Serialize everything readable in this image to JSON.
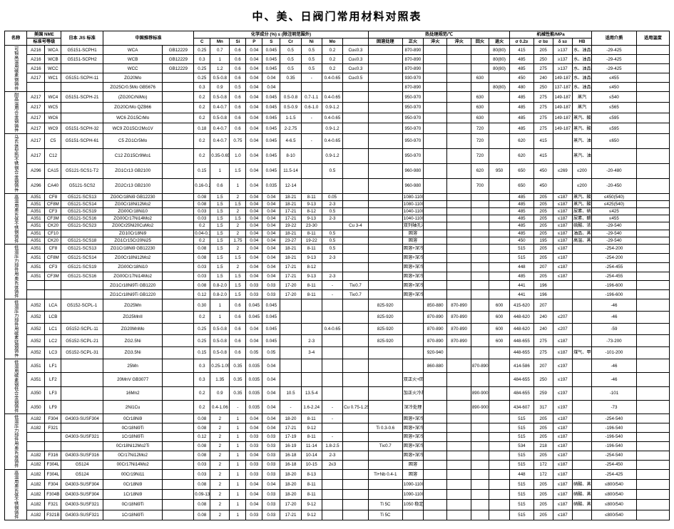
{
  "title": "中、美、日阀门常用材料对照表",
  "header": {
    "row1": {
      "name": "名称",
      "us": "美国 NME",
      "jp": "日本 JIS 标准",
      "cn": "中国推荐标准",
      "chem": "化学成分 (%) ≤ (除注明范围外)",
      "heat": "热处理规范/℃",
      "mech": "机械性能/MPa",
      "use": "适用介质",
      "temp": "适用温度"
    },
    "row2": {
      "us_sub": "标准号等级",
      "chem_cols": [
        "C",
        "Mn",
        "Si",
        "P",
        "S",
        "Cr",
        "Ni",
        "Mo"
      ],
      "heat_cols": [
        "固溶处理",
        "正火",
        "淬火",
        "淬火",
        "回火",
        "退火"
      ],
      "mech_cols": [
        "σ 0.2≥",
        "σ b≥",
        "δ s≥",
        "HB"
      ]
    }
  },
  "groups": [
    {
      "label": "可锻高温用碳素钢铸件",
      "rows": [
        "r0",
        "r1",
        "r2",
        "r3",
        "r4"
      ]
    },
    {
      "label": "耐高温用合金钢铸件",
      "rows": [
        "r5",
        "r6",
        "r7",
        "r8"
      ]
    },
    {
      "label": "马氏体型热不锈钢合金钢铸件",
      "rows": [
        "r9",
        "r10",
        "r11",
        "r12"
      ]
    },
    {
      "label": "高温用奥氏体不锈钢铸件",
      "rows": [
        "r13",
        "r14",
        "r15",
        "r16",
        "r17",
        "r18",
        "r19"
      ]
    },
    {
      "label": "低温压力部件用奥氏体铸件",
      "rows": [
        "r20",
        "r21",
        "r22",
        "r23",
        "r24",
        "r25"
      ]
    },
    {
      "label": "低温压力部件用碳素锰钢铸件",
      "rows": [
        "r26",
        "r27",
        "r28",
        "r29",
        "r30"
      ]
    },
    {
      "label": "低温用碳素钢低合金钢铸件",
      "rows": [
        "r31",
        "r32",
        "r33",
        "r34"
      ]
    },
    {
      "label": "低温压力部件用奥氏体铸件",
      "rows": [
        "r35",
        "r36",
        "r37",
        "r38",
        "r39",
        "r40"
      ]
    },
    {
      "label": "高温用奥氏体不锈钢铸件",
      "rows": [
        "r41",
        "r42",
        "r43",
        "r44"
      ]
    }
  ],
  "rows": {
    "r0": [
      "A216",
      "WCA",
      "G5151-SCPH1",
      "WCA",
      "GB12229",
      "0.25",
      "0.7",
      "0.6",
      "0.04",
      "0.045",
      "0.5",
      "0.5",
      "0.2",
      "Cu≤0.3",
      "",
      "870-890",
      "",
      "",
      "",
      "80(80)",
      "415",
      "205",
      "≥137",
      "水、油品、蒸汽",
      "-29-425"
    ],
    "r1": [
      "A216",
      "WCB",
      "G5151-SCPH2",
      "WCB",
      "GB12229",
      "0.3",
      "1",
      "0.6",
      "0.04",
      "0.045",
      "0.5",
      "0.5",
      "0.2",
      "Cu≤0.3",
      "",
      "870-890",
      "",
      "",
      "",
      "80(80)",
      "485",
      "250",
      "≥137",
      "水、油品、蒸汽",
      "-29-425"
    ],
    "r2": [
      "A216",
      "WCC",
      "",
      "WCC",
      "GB12229",
      "0.25",
      "1.2",
      "0.6",
      "0.04",
      "0.045",
      "0.5",
      "0.5",
      "0.2",
      "Cu≤0.3",
      "",
      "870-890",
      "",
      "",
      "",
      "80(80)",
      "485",
      "275",
      "≥137",
      "水、油品、蒸汽",
      "-29-425"
    ],
    "r3": [
      "A217",
      "WC1",
      "G5151-SCPH-11",
      "ZG20Mo",
      "",
      "0.25",
      "0.5-0.8",
      "0.6",
      "0.04",
      "0.04",
      "0.35",
      "-",
      "0.4-0.65",
      "Cu≤0.5",
      "",
      "930-970",
      "",
      "",
      "630",
      "",
      "450",
      "240",
      "149-187",
      "水、油品、蒸汽",
      "≤455"
    ],
    "r4": [
      "",
      "",
      "",
      "ZG25Cr0.5Mo  GB5676",
      "",
      "0.3",
      "0.9",
      "0.5",
      "0.04",
      "0.04",
      "",
      "",
      "",
      "",
      "",
      "870-890",
      "",
      "",
      "",
      "80(80)",
      "480",
      "250",
      "137-187",
      "水、油品、蒸汽",
      "≤450"
    ],
    "r5": [
      "A217",
      "WC4",
      "G5151-SCPH-21",
      "(ZG20CrNiMo)",
      "",
      "0.2",
      "0.5-0.8",
      "0.6",
      "0.04",
      "0.045",
      "0.5-0.8",
      "0.7-1.1",
      "0.4-0.65",
      "",
      "",
      "950-970",
      "",
      "",
      "630",
      "",
      "485",
      "275",
      "149-187",
      "蒸汽",
      "≤540"
    ],
    "r6": [
      "A217",
      "WC5",
      "",
      "ZG20CrMo  QZB66",
      "",
      "0.2",
      "0.4-0.7",
      "0.6",
      "0.04",
      "0.045",
      "0.5-0.9",
      "0.6-1.0",
      "0.9-1.2",
      "",
      "",
      "950-970",
      "",
      "",
      "630",
      "",
      "485",
      "275",
      "149-187",
      "蒸汽",
      "≤565"
    ],
    "r7": [
      "A217",
      "WC6",
      "",
      "WC6  ZG15CrMo",
      "",
      "0.2",
      "0.5-0.8",
      "0.6",
      "0.04",
      "0.045",
      "1-1.5",
      "-",
      "0.4-0.65",
      "",
      "",
      "950-970",
      "",
      "",
      "630",
      "",
      "485",
      "275",
      "149-187",
      "蒸汽、酸碱类",
      "≤595"
    ],
    "r8": [
      "A217",
      "WC9",
      "G5151-SCPH-32",
      "WC9  ZG15Cr2Mo1V",
      "",
      "0.18",
      "0.4-0.7",
      "0.6",
      "0.04",
      "0.045",
      "2-2.75",
      "",
      "0.9-1.2",
      "",
      "",
      "950-970",
      "",
      "",
      "720",
      "",
      "485",
      "275",
      "149-187",
      "蒸汽、酸碱类",
      "≤595"
    ],
    "r9": [
      "A217",
      "C5",
      "G5151-SCPH-61",
      "C5  ZG1Cr5Mo",
      "",
      "0.2",
      "0.4-0.7",
      "0.75",
      "0.04",
      "0.045",
      "4-6.5",
      "-",
      "0.4-0.65",
      "",
      "",
      "950-970",
      "",
      "",
      "720",
      "",
      "620",
      "415",
      "",
      "蒸汽、油品",
      "≤650"
    ],
    "r10": [
      "A217",
      "C12",
      "",
      "C12  ZG15Cr9Mo1",
      "",
      "0.2",
      "0.35-0.65",
      "1.0",
      "0.04",
      "0.045",
      "8-10",
      "",
      "0.9-1.2",
      "",
      "",
      "950-970",
      "",
      "",
      "720",
      "",
      "620",
      "415",
      "",
      "蒸汽、油品",
      ""
    ],
    "r11": [
      "A296",
      "CA15",
      "G5121-SCS1-T2",
      "ZG1Cr13  GB2100",
      "",
      "0.15",
      "1",
      "1.5",
      "0.04",
      "0.045",
      "11.5-14",
      "",
      "0.5",
      "",
      "",
      "960-980",
      "",
      "",
      "620",
      "950",
      "650",
      "450",
      "≤269",
      "≤200",
      "-20-480"
    ],
    "r12": [
      "A296",
      "CA40",
      "G5121-SCS2",
      "ZG2Cr13  GB2100",
      "",
      "0.16-0.24",
      "0.6",
      "1",
      "0.04",
      "0.035",
      "12-14",
      "",
      "",
      "",
      "",
      "960-980",
      "",
      "",
      "700",
      "",
      "650",
      "450",
      "",
      "≤200",
      "-20-450"
    ],
    "r13": [
      "A351",
      "CF8",
      "G5121-SCS13",
      "ZG0Cr18Ni9  GB12230",
      "",
      "0.08",
      "1.5",
      "2",
      "0.04",
      "0.04",
      "18-21",
      "8-11",
      "0.05",
      "",
      "",
      "1080-1100 固溶",
      "",
      "",
      "",
      "",
      "485",
      "205",
      "≤187",
      "蒸汽、酸碱类",
      "≤450(540)"
    ],
    "r14": [
      "A351",
      "CF8M",
      "G5121-SCS14",
      "ZG0Cr18Ni12Mo2",
      "",
      "0.08",
      "1.5",
      "1.5",
      "0.04",
      "0.04",
      "18-21",
      "9-13",
      "2-3",
      "",
      "",
      "1080-1100 固溶",
      "",
      "",
      "",
      "",
      "485",
      "205",
      "≤187",
      "蒸汽、酸碱、硝酸",
      "≤425(540)"
    ],
    "r15": [
      "A351",
      "CF3",
      "G5121-SCS19",
      "ZG00Cr18Ni10",
      "",
      "0.03",
      "1.5",
      "2",
      "0.04",
      "0.04",
      "17-21",
      "8-12",
      "0.5",
      "",
      "",
      "1040-1100 固溶",
      "",
      "",
      "",
      "",
      "485",
      "205",
      "≤187",
      "尿素、硝酸",
      "≤425"
    ],
    "r16": [
      "A351",
      "CF3M",
      "G5121-SCS16",
      "ZG00Cr17Ni14Mo2",
      "",
      "0.03",
      "1.5",
      "1.5",
      "0.04",
      "0.04",
      "17-21",
      "9-13",
      "2-3",
      "",
      "",
      "1040-1100 固溶",
      "",
      "",
      "",
      "",
      "485",
      "205",
      "≤187",
      "尿素、醋酸类",
      "≤455"
    ],
    "r17": [
      "A351",
      "CK20",
      "G5121-SCS23",
      "ZG0Cr25Ni20CuMo2",
      "",
      "0.2",
      "1.5",
      "2",
      "0.04",
      "0.04",
      "19-22",
      "23-30",
      "",
      "Cu 3-4",
      "",
      "双列轴孔淬火",
      "",
      "",
      "",
      "",
      "485",
      "205",
      "≤187",
      "硫酸、浓硝酸",
      "-29-540"
    ],
    "r18": [
      "A351",
      "CF10",
      "",
      "ZG10Cr18Ni9",
      "",
      "0.04-0.1",
      "1.5",
      "2",
      "0.04",
      "0.04",
      "18-21",
      "8-11",
      "0.5",
      "",
      "",
      "固溶",
      "",
      "",
      "",
      "",
      "485",
      "205",
      "≤187",
      "油品、蒸汽、强腐蚀",
      "-29-540"
    ],
    "r19": [
      "A351",
      "CK20",
      "G5121-SCS18",
      "ZG1Cr15Cr20Ni25",
      "",
      "0.2",
      "1.5",
      "1.75",
      "0.04",
      "0.04",
      "23-27",
      "19-22",
      "0.5",
      "",
      "",
      "固溶",
      "",
      "",
      "",
      "",
      "450",
      "195",
      "≤187",
      "高温、蒸汽、强腐蚀",
      "-29-540"
    ],
    "r20": [
      "A351",
      "CF8",
      "G5121-SCS13",
      "ZG1Cr18Ni9  GB12230",
      "",
      "0.08",
      "1.5",
      "2",
      "0.04",
      "0.04",
      "18-21",
      "8-11",
      "0.5",
      "",
      "",
      "固溶+深冷",
      "",
      "",
      "",
      "",
      "515",
      "205",
      "≤187",
      "",
      "-254-200"
    ],
    "r21": [
      "A351",
      "CF8M",
      "G5121-SCS14",
      "ZG0Cr18Ni12Mo2",
      "",
      "0.08",
      "1.5",
      "1.5",
      "0.04",
      "0.04",
      "18-21",
      "9-13",
      "2-3",
      "",
      "",
      "固溶+深冷",
      "",
      "",
      "",
      "",
      "515",
      "205",
      "≤187",
      "",
      "-254-200"
    ],
    "r22": [
      "A351",
      "CF3",
      "G5121-SCS19",
      "ZG00Cr18Ni10",
      "",
      "0.03",
      "1.5",
      "2",
      "0.04",
      "0.04",
      "17-21",
      "8-12",
      "",
      "",
      "",
      "固溶+深冷",
      "",
      "",
      "",
      "",
      "448",
      "207",
      "≤187",
      "",
      "-254-455"
    ],
    "r23": [
      "A351",
      "CF3M",
      "G5121-SCS16",
      "ZG00Cr17Ni14Mo2",
      "",
      "0.03",
      "1.5",
      "1.5",
      "0.04",
      "0.04",
      "17-21",
      "9-13",
      "2-3",
      "",
      "",
      "固溶+深冷",
      "",
      "",
      "",
      "",
      "485",
      "205",
      "≤187",
      "",
      "-254-455"
    ],
    "r24": [
      "",
      "",
      "",
      "ZG1Cr18Ni9Ti  GB1220",
      "",
      "0.08",
      "0.8-2.0",
      "1.5",
      "0.03",
      "0.03",
      "17-20",
      "8-11",
      "-",
      "Ti≤0.7",
      "",
      "固溶+深冷",
      "",
      "",
      "",
      "",
      "441",
      "196",
      "",
      "",
      "-196-600"
    ],
    "r25": [
      "",
      "",
      "",
      "ZG1Cr18Ni9Ti  GB1220",
      "",
      "0.12",
      "0.8-2.0",
      "1.5",
      "0.03",
      "0.03",
      "17-20",
      "8-11",
      "-",
      "Ti≤0.7",
      "",
      "固溶+深冷",
      "",
      "",
      "",
      "",
      "441",
      "196",
      "",
      "",
      "-196-600"
    ],
    "r26": [
      "A352",
      "LCA",
      "G5152-SCPL-1",
      "ZG25Mn",
      "",
      "0.30",
      "1",
      "0.6",
      "0.045",
      "0.045",
      "",
      "",
      "",
      "",
      "825-920",
      "",
      "850-880",
      "870-890",
      "",
      "600",
      "415-620",
      "207",
      "",
      "",
      "-46"
    ],
    "r27": [
      "A352",
      "LCB",
      "",
      "ZG25MnII",
      "",
      "0.2",
      "1",
      "0.6",
      "0.045",
      "0.045",
      "",
      "",
      "",
      "",
      "825-920",
      "",
      "870-890",
      "870-890",
      "",
      "600",
      "448-620",
      "240",
      "≤207",
      "",
      "-46"
    ],
    "r28": [
      "A352",
      "LC1",
      "G5152-SCPL-11",
      "ZG20MnMo",
      "",
      "0.25",
      "0.5-0.8",
      "0.6",
      "0.04",
      "0.045",
      "",
      "",
      "0.4-0.65",
      "",
      "825-920",
      "",
      "870-890",
      "870-890",
      "",
      "600",
      "448-620",
      "240",
      "≤207",
      "",
      "-59"
    ],
    "r29": [
      "A352",
      "LC2",
      "G5152-SCPL-21",
      "ZG2.5Ni",
      "",
      "0.25",
      "0.5-0.8",
      "0.6",
      "0.04",
      "0.045",
      "",
      "2-3",
      "",
      "",
      "825-920",
      "",
      "870-890",
      "870-890",
      "",
      "600",
      "448-655",
      "275",
      "≤187",
      "",
      "-73-200"
    ],
    "r30": [
      "A352",
      "LC3",
      "G5152-SCPL-31",
      "ZG3.5Ni",
      "",
      "0.15",
      "0.5-0.8",
      "0.6",
      "0.05",
      "0.05",
      "",
      "3-4",
      "",
      "",
      "",
      "",
      "920-940",
      "",
      "",
      "",
      "448-655",
      "275",
      "≤187",
      "煤气、甲烷",
      "-101-200"
    ],
    "r31": [
      "A351",
      "LF1",
      "",
      "25Mn",
      "",
      "0.3",
      "0.25-1.05",
      "0.35",
      "0.035",
      "0.04",
      "",
      "",
      "",
      "",
      "",
      "",
      "860-880",
      "",
      "870-890",
      "",
      "414-586",
      "207",
      "≤197",
      "",
      "-46"
    ],
    "r32": [
      "A351",
      "LF2",
      "",
      "20MnV  GB3077",
      "",
      "0.3",
      "1.35",
      "0.35",
      "0.035",
      "0.04",
      "",
      "",
      "",
      "",
      "",
      "双正火+回火",
      "",
      "",
      "",
      "",
      "484-655",
      "250",
      "≤197",
      "",
      "-46"
    ],
    "r33": [
      "A350",
      "LF3",
      "",
      "16Mn2",
      "",
      "0.2",
      "0.9",
      "0.35",
      "0.035",
      "0.04",
      "10.5",
      "13.5-4",
      "",
      "",
      "",
      "加正火冷却",
      "",
      "",
      "890-900",
      "",
      "484-655",
      "259",
      "≤197",
      "",
      "-101"
    ],
    "r34": [
      "A350",
      "LF9",
      "",
      "2Ni1Cu",
      "",
      "0.2",
      "0.4-1.06",
      "-",
      "0.035",
      "0.04",
      "-",
      "1.6-2.24",
      "-",
      "Cu 0.75-1.25",
      "",
      "深冷处理",
      "",
      "",
      "890-900",
      "",
      "434-607",
      "317",
      "≤197",
      "",
      "-73"
    ],
    "r35": [
      "A182",
      "F304",
      "G4303-SUSF304",
      "0Cr18Ni9",
      "",
      "0.08",
      "2",
      "1",
      "0.04",
      "0.04",
      "18-20",
      "8-11",
      "-",
      "",
      "",
      "固溶+深冷",
      "",
      "",
      "",
      "",
      "515",
      "205",
      "≤187",
      "",
      "-254-540"
    ],
    "r36": [
      "A182",
      "F321",
      "",
      "0Cr18Ni9Ti",
      "",
      "0.08",
      "2",
      "1",
      "0.04",
      "0.04",
      "17-21",
      "9-12",
      "",
      "",
      "Ti 0.3-0.6",
      "固溶+深冷",
      "",
      "",
      "",
      "",
      "515",
      "205",
      "≤187",
      "",
      "-196-540"
    ],
    "r37": [
      "",
      "",
      "G4303-SUSF321",
      "1Cr18Ni9Ti",
      "",
      "0.12",
      "2",
      "1",
      "0.03",
      "0.03",
      "17-19",
      "8-11",
      "-",
      "",
      "",
      "固溶+深冷",
      "",
      "",
      "",
      "",
      "515",
      "205",
      "≤187",
      "",
      "-196-540"
    ],
    "r38": [
      "",
      "",
      "",
      "0Cr18Ni12Mo2Ti",
      "",
      "0.08",
      "2",
      "1",
      "0.03",
      "0.03",
      "16-19",
      "11-14",
      "1.8-2.5",
      "",
      "Ti≤0.7",
      "固溶+深冷",
      "",
      "",
      "",
      "",
      "534",
      "218",
      "≤187",
      "",
      "-196-540"
    ],
    "r39": [
      "A182",
      "F316",
      "G4303-SUSF316",
      "0Cr17Ni12Mo2",
      "",
      "0.08",
      "2",
      "1",
      "0.04",
      "0.03",
      "16-18",
      "10-14",
      "2-3",
      "",
      "",
      "固溶+深冷",
      "",
      "",
      "",
      "",
      "515",
      "205",
      "≤187",
      "",
      "-254-540"
    ],
    "r40": [
      "A182",
      "F304L",
      "G5124",
      "00Cr17Ni14Mo2",
      "",
      "0.03",
      "2",
      "1",
      "0.03",
      "0.03",
      "16-18",
      "10-15",
      "2≤3",
      "",
      "",
      "固溶",
      "",
      "",
      "",
      "",
      "515",
      "172",
      "≤187",
      "",
      "-254-450"
    ],
    "r41": [
      "A182",
      "F304L",
      "G5124",
      "00Cr19Ni11",
      "",
      "0.03",
      "2",
      "1",
      "0.03",
      "0.03",
      "18-20",
      "8-13",
      "",
      "",
      "Ti+Nb 0.4-1",
      "固溶",
      "",
      "",
      "",
      "",
      "448",
      "172",
      "≤187",
      "",
      "-254-425"
    ],
    "r42": [
      "A182",
      "F304",
      "G4303-SUSF304",
      "0Cr18Ni9",
      "",
      "0.08",
      "2",
      "1",
      "0.04",
      "0.04",
      "18-20",
      "8-11",
      "",
      "",
      "",
      "1090-1100 固溶",
      "",
      "",
      "",
      "",
      "515",
      "205",
      "≤187",
      "硝酸、蒸汽",
      "≤800/540"
    ],
    "r43": [
      "A182",
      "F304B",
      "G4303-SUSF304",
      "1Cr18Ni9",
      "",
      "0.09-13",
      "2",
      "1",
      "0.04",
      "0.03",
      "18-20",
      "8-11",
      "",
      "",
      "",
      "1090-1100 固溶",
      "",
      "",
      "",
      "",
      "515",
      "205",
      "≤187",
      "硝酸、蒸汽",
      "≤800/540"
    ],
    "r44": [
      "A182",
      "F321",
      "G4303-SUSF321",
      "0Cr18Ni9Ti",
      "",
      "0.08",
      "2",
      "1",
      "0.04",
      "0.03",
      "17-20",
      "9-12",
      "",
      "",
      "Ti 5C",
      "1050 稳定处理",
      "",
      "",
      "",
      "",
      "515",
      "205",
      "≤187",
      "硝酸、蒸汽",
      "≤800/540"
    ],
    "r45": [
      "A182",
      "F321B",
      "G4303-SUSF321",
      "1Cr18Ni9Ti",
      "",
      "0.08",
      "2",
      "1",
      "0.03",
      "0.03",
      "17-21",
      "9-12",
      "",
      "",
      "Ti 5C",
      "",
      "",
      "",
      "",
      "",
      "515",
      "205",
      "≤187",
      "",
      "≤800/540"
    ]
  }
}
